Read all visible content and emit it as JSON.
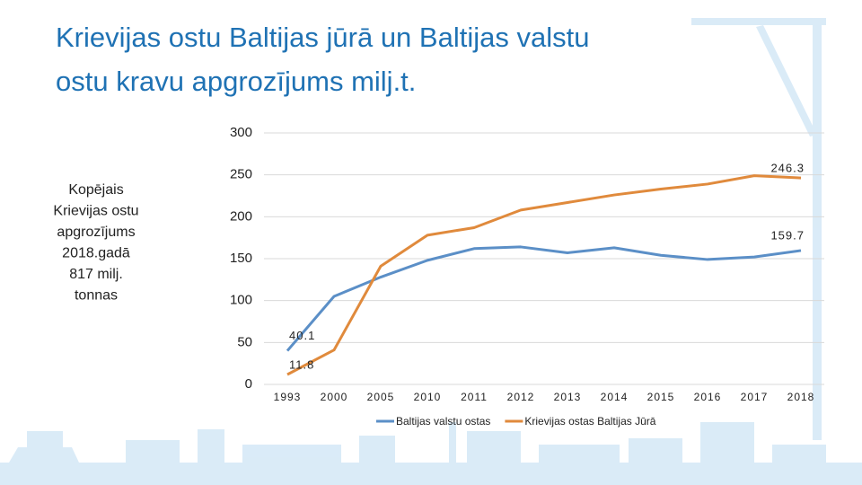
{
  "chart_data": {
    "type": "line",
    "title": [
      "Krievijas ostu Baltijas jūrā un Baltijas valstu",
      "ostu kravu apgrozījums milj.t."
    ],
    "annotation": [
      "Kopējais",
      "Krievijas ostu",
      "apgrozījums",
      "2018.gadā",
      "817 milj.",
      "tonnas"
    ],
    "categories": [
      "1993",
      "2000",
      "2005",
      "2010",
      "2011",
      "2012",
      "2013",
      "2014",
      "2015",
      "2016",
      "2017",
      "2018"
    ],
    "series": [
      {
        "name": "Baltijas valstu ostas",
        "color": "#5b8fc7",
        "values": [
          40.1,
          105,
          128,
          148,
          162,
          164,
          157,
          163,
          154,
          149,
          152,
          159.7
        ],
        "value_labels": [
          "40.1",
          null,
          null,
          null,
          null,
          null,
          null,
          null,
          null,
          null,
          null,
          "159.7"
        ]
      },
      {
        "name": "Krievijas ostas Baltijas Jūrā",
        "color": "#e08a3c",
        "values": [
          11.8,
          41,
          141,
          178,
          187,
          208,
          217,
          226,
          233,
          239,
          249,
          246.3
        ],
        "value_labels": [
          "11.8",
          null,
          null,
          null,
          null,
          null,
          null,
          null,
          null,
          null,
          null,
          "246.3"
        ]
      }
    ],
    "ylim": [
      0,
      300
    ],
    "yticks": [
      0,
      50,
      100,
      150,
      200,
      250,
      300
    ],
    "grid": true,
    "legend": "bottom"
  }
}
